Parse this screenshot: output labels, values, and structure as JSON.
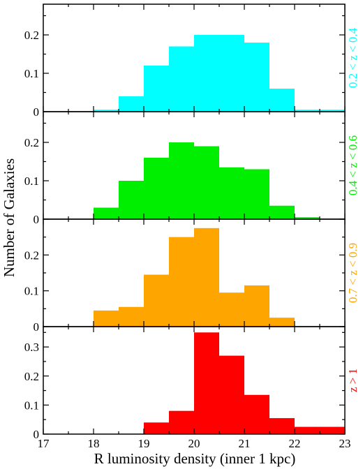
{
  "chart_data": {
    "type": "bar",
    "xlabel": "R luminosity density (inner 1 kpc)",
    "ylabel": "Number of Galaxies",
    "xlim": [
      17,
      23
    ],
    "x_ticks": [
      "17",
      "18",
      "19",
      "20",
      "21",
      "22",
      "23"
    ],
    "bin_width": 0.5,
    "bin_starts": [
      18.0,
      18.5,
      19.0,
      19.5,
      20.0,
      20.5,
      21.0,
      21.5,
      22.0,
      22.5
    ],
    "panels": [
      {
        "label": "0.2 < z < 0.4",
        "color": "#00ffff",
        "ylim": [
          0,
          0.28
        ],
        "y_ticks": [
          0,
          0.1,
          0.2
        ],
        "y_tick_labels": [
          "0",
          "0.1",
          "0.2"
        ],
        "values": [
          0.005,
          0.04,
          0.12,
          0.17,
          0.2,
          0.2,
          0.18,
          0.06,
          0.005,
          0.005
        ]
      },
      {
        "label": "0.4 < z < 0.6",
        "color": "#00ee00",
        "ylim": [
          0,
          0.28
        ],
        "y_ticks": [
          0,
          0.1,
          0.2
        ],
        "y_tick_labels": [
          "0",
          "0.1",
          "0.2"
        ],
        "values": [
          0.03,
          0.1,
          0.16,
          0.2,
          0.19,
          0.135,
          0.13,
          0.035,
          0.005,
          0
        ]
      },
      {
        "label": "0.7 < z < 0.9",
        "color": "#ffa500",
        "ylim": [
          0,
          0.3
        ],
        "y_ticks": [
          0,
          0.1,
          0.2
        ],
        "y_tick_labels": [
          "0",
          "0.1",
          "0.2"
        ],
        "values": [
          0.045,
          0.055,
          0.145,
          0.25,
          0.275,
          0.095,
          0.115,
          0.025,
          0,
          0
        ]
      },
      {
        "label": "z > 1",
        "color": "#ff0000",
        "ylim": [
          0,
          0.37
        ],
        "y_ticks": [
          0,
          0.1,
          0.2,
          0.3
        ],
        "y_tick_labels": [
          "0",
          "0.1",
          "0.2",
          "0.3"
        ],
        "values": [
          0,
          0,
          0.04,
          0.08,
          0.35,
          0.27,
          0.135,
          0.055,
          0.025,
          0.025
        ]
      }
    ]
  }
}
